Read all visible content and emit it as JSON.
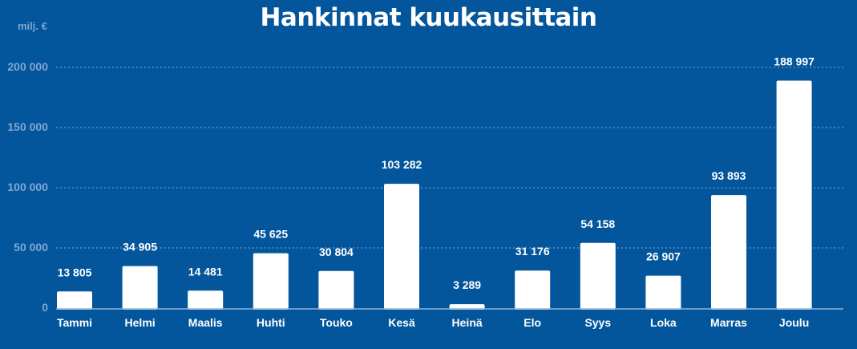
{
  "header": {
    "title": "Hankinnat kuukausittain",
    "unit_label": "milj. €"
  },
  "colors": {
    "background": "#04569c",
    "bar": "#ffffff",
    "text": "#ffffff",
    "axis_text": "#7fa6d2",
    "grid": "#7fa6d2"
  },
  "chart_data": {
    "type": "bar",
    "title": "Hankinnat kuukausittain",
    "ylabel": "milj. €",
    "xlabel": "",
    "categories": [
      "Tammi",
      "Helmi",
      "Maalis",
      "Huhti",
      "Touko",
      "Kesä",
      "Heinä",
      "Elo",
      "Syys",
      "Loka",
      "Marras",
      "Joulu"
    ],
    "values": [
      13805,
      34905,
      14481,
      45625,
      30804,
      103282,
      3289,
      31176,
      54158,
      26907,
      93893,
      188997
    ],
    "value_labels": [
      "13 805",
      "34 905",
      "14 481",
      "45 625",
      "30 804",
      "103 282",
      "3 289",
      "31 176",
      "54 158",
      "26 907",
      "93 893",
      "188 997"
    ],
    "yticks": [
      0,
      50000,
      100000,
      150000,
      200000
    ],
    "ytick_labels": [
      "0",
      "50 000",
      "100 000",
      "150 000",
      "200 000"
    ],
    "ylim": [
      0,
      200000
    ],
    "grid": true,
    "legend": "none"
  }
}
